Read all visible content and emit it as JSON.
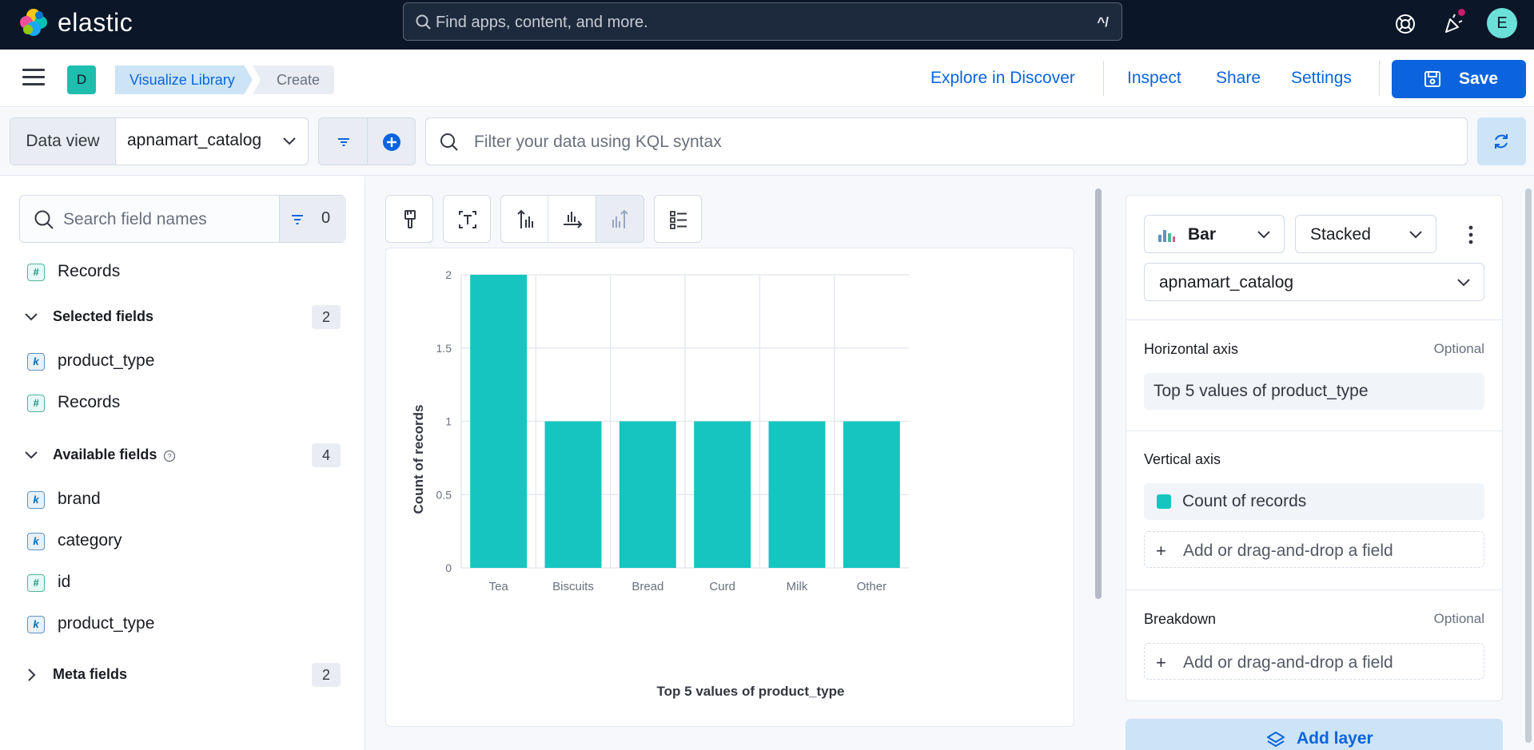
{
  "topbar": {
    "brand": "elastic",
    "search_placeholder": "Find apps, content, and more.",
    "search_shortcut": "^/",
    "avatar_initial": "E"
  },
  "header": {
    "space_initial": "D",
    "breadcrumbs": [
      "Visualize Library",
      "Create"
    ],
    "links": {
      "explore": "Explore in Discover",
      "inspect": "Inspect",
      "share": "Share",
      "settings": "Settings"
    },
    "save_label": "Save"
  },
  "querybar": {
    "data_view_label": "Data view",
    "data_view_value": "apnamart_catalog",
    "kql_placeholder": "Filter your data using KQL syntax"
  },
  "fields_panel": {
    "search_placeholder": "Search field names",
    "filter_count": "0",
    "records_top": "Records",
    "selected": {
      "title": "Selected fields",
      "count": "2",
      "items": [
        {
          "type": "k",
          "name": "product_type"
        },
        {
          "type": "#",
          "name": "Records"
        }
      ]
    },
    "available": {
      "title": "Available fields",
      "count": "4",
      "items": [
        {
          "type": "k",
          "name": "brand"
        },
        {
          "type": "k",
          "name": "category"
        },
        {
          "type": "#",
          "name": "id"
        },
        {
          "type": "k",
          "name": "product_type"
        }
      ]
    },
    "meta": {
      "title": "Meta fields",
      "count": "2"
    }
  },
  "chart_data": {
    "type": "bar",
    "categories": [
      "Tea",
      "Biscuits",
      "Bread",
      "Curd",
      "Milk",
      "Other"
    ],
    "series": [
      {
        "name": "Count of records",
        "values": [
          2,
          1,
          1,
          1,
          1,
          1
        ],
        "color": "#16c5c0"
      }
    ],
    "xlabel": "Top 5 values of product_type",
    "ylabel": "Count of records",
    "ylim": [
      0,
      2
    ],
    "yticks": [
      "0",
      "0.5",
      "1",
      "1.5",
      "2"
    ],
    "grid": true
  },
  "config_panel": {
    "chart_type": "Bar",
    "stacking": "Stacked",
    "data_view": "apnamart_catalog",
    "horizontal_axis": {
      "label": "Horizontal axis",
      "optional": "Optional",
      "value": "Top 5 values of product_type"
    },
    "vertical_axis": {
      "label": "Vertical axis",
      "value": "Count of records",
      "color": "#16c5c0",
      "add": "Add or drag-and-drop a field"
    },
    "breakdown": {
      "label": "Breakdown",
      "optional": "Optional",
      "add": "Add or drag-and-drop a field"
    },
    "add_layer": "Add layer"
  }
}
